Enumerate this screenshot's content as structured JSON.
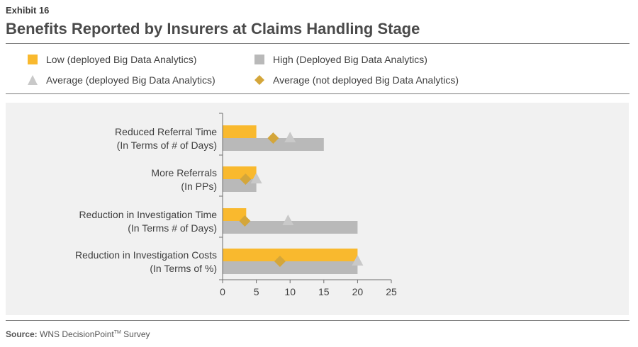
{
  "header": {
    "exhibit": "Exhibit 16",
    "title": "Benefits Reported by Insurers at Claims Handling Stage"
  },
  "legend": [
    {
      "label": "Low (deployed Big Data Analytics)",
      "shape": "square",
      "color": "#f9b92e"
    },
    {
      "label": "High (Deployed Big Data Analytics)",
      "shape": "square",
      "color": "#b9b9b9"
    },
    {
      "label": "Average (deployed Big Data Analytics)",
      "shape": "triangle",
      "color": "#c9c9c9"
    },
    {
      "label": "Average (not deployed Big Data Analytics)",
      "shape": "diamond",
      "color": "#d4a63a"
    }
  ],
  "source": {
    "label": "Source:",
    "text": "WNS DecisionPoint",
    "tm": "TM",
    "suffix": " Survey"
  },
  "chart_data": {
    "type": "bar",
    "orientation": "horizontal",
    "categories": [
      [
        "Reduced Referral Time",
        "(In Terms of # of Days)"
      ],
      [
        "More Referrals",
        "(In PPs)"
      ],
      [
        "Reduction in Investigation Time",
        "(In Terms # of Days)"
      ],
      [
        "Reduction in Investigation Costs",
        "(In Terms of %)"
      ]
    ],
    "series": [
      {
        "name": "Low (deployed Big Data Analytics)",
        "kind": "bar",
        "color": "#f9b92e",
        "values": [
          5,
          5,
          3.5,
          20
        ]
      },
      {
        "name": "High (Deployed Big Data Analytics)",
        "kind": "bar",
        "color": "#b9b9b9",
        "values": [
          15,
          5,
          20,
          20
        ]
      },
      {
        "name": "Average (deployed Big Data Analytics)",
        "kind": "triangle",
        "color": "#c9c9c9",
        "values": [
          10,
          5,
          9.7,
          20
        ]
      },
      {
        "name": "Average (not deployed Big Data Analytics)",
        "kind": "diamond",
        "color": "#d4a63a",
        "values": [
          7.5,
          3.4,
          3.3,
          8.5
        ]
      }
    ],
    "xlim": [
      0,
      25
    ],
    "xticks": [
      0,
      5,
      10,
      15,
      20,
      25
    ],
    "grid": false,
    "legend_position": "top"
  }
}
